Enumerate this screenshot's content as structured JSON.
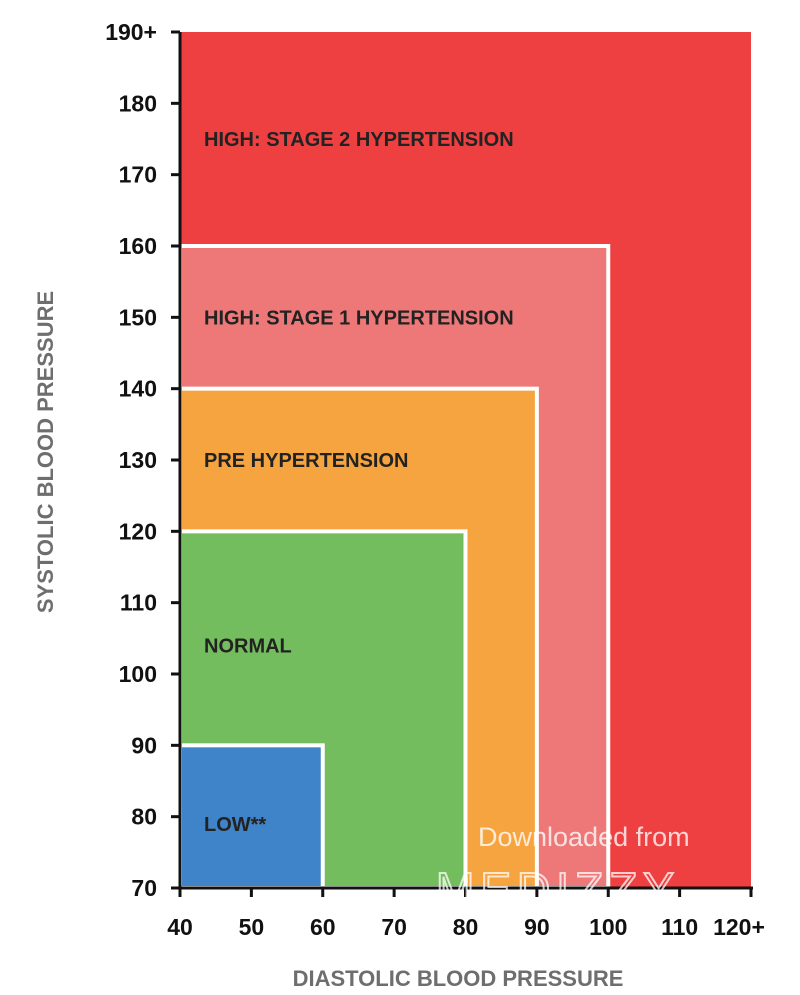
{
  "chart_data": {
    "type": "area",
    "xlabel": "DIASTOLIC BLOOD PRESSURE",
    "ylabel": "SYSTOLIC BLOOD PRESSURE",
    "xlim": [
      40,
      120
    ],
    "ylim": [
      70,
      190
    ],
    "x_ticks": [
      "40",
      "50",
      "60",
      "70",
      "80",
      "90",
      "100",
      "110",
      "120+"
    ],
    "y_ticks": [
      "70",
      "80",
      "90",
      "100",
      "110",
      "120",
      "130",
      "140",
      "150",
      "160",
      "170",
      "180",
      "190+"
    ],
    "x_tick_values": [
      40,
      50,
      60,
      70,
      80,
      90,
      100,
      110,
      120
    ],
    "y_tick_values": [
      70,
      80,
      90,
      100,
      110,
      120,
      130,
      140,
      150,
      160,
      170,
      180,
      190
    ],
    "zones": [
      {
        "label": "HIGH: STAGE 2 HYPERTENSION",
        "diastolic_max": 120,
        "systolic_max": 190,
        "label_systolic": 175,
        "color": "#ee4040"
      },
      {
        "label": "HIGH: STAGE 1 HYPERTENSION",
        "diastolic_max": 100,
        "systolic_max": 160,
        "label_systolic": 150,
        "color": "#ee7878"
      },
      {
        "label": "PRE HYPERTENSION",
        "diastolic_max": 90,
        "systolic_max": 140,
        "label_systolic": 130,
        "color": "#f6a440"
      },
      {
        "label": "NORMAL",
        "diastolic_max": 80,
        "systolic_max": 120,
        "label_systolic": 104,
        "color": "#74bd5e"
      },
      {
        "label": "LOW**",
        "diastolic_max": 60,
        "systolic_max": 90,
        "label_systolic": 79,
        "color": "#3f83c8"
      }
    ],
    "grid": false,
    "legend": "none"
  },
  "watermark": {
    "text": "Downloaded from",
    "brand": "MEDIZZY"
  }
}
